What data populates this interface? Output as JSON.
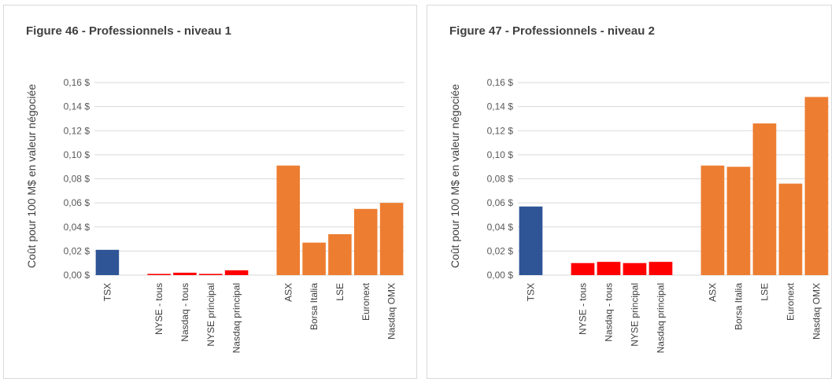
{
  "chart_data": [
    {
      "type": "bar",
      "title": "Figure 46 - Professionnels - niveau 1",
      "ylabel": "Coût pour 100 M$ en valeur négociée",
      "xlabel": "",
      "ylim": [
        0,
        0.16
      ],
      "yticks": [
        "0,00 $",
        "0,02 $",
        "0,04 $",
        "0,06 $",
        "0,08 $",
        "0,10 $",
        "0,12 $",
        "0,14 $",
        "0,16 $"
      ],
      "grid": true,
      "categories": [
        "TSX",
        "NYSE - tous",
        "Nasdaq - tous",
        "NYSE principal",
        "Nasdaq principal",
        "ASX",
        "Borsa Italia",
        "LSE",
        "Euronext",
        "Nasdaq OMX"
      ],
      "values": [
        0.021,
        0.001,
        0.002,
        0.001,
        0.004,
        0.091,
        0.027,
        0.034,
        0.055,
        0.06
      ],
      "groups": [
        1,
        4,
        5
      ],
      "colors": {
        "tsx": "#2f5597",
        "us": "#ff0000",
        "intl": "#ed7d31"
      }
    },
    {
      "type": "bar",
      "title": "Figure 47 - Professionnels - niveau 2",
      "ylabel": "Coût pour 100 M$ en valeur négociée",
      "xlabel": "",
      "ylim": [
        0,
        0.16
      ],
      "yticks": [
        "0,00 $",
        "0,02 $",
        "0,04 $",
        "0,06 $",
        "0,08 $",
        "0,10 $",
        "0,12 $",
        "0,14 $",
        "0,16 $"
      ],
      "grid": true,
      "categories": [
        "TSX",
        "NYSE - tous",
        "Nasdaq - tous",
        "NYSE principal",
        "Nasdaq principal",
        "ASX",
        "Borsa Italia",
        "LSE",
        "Euronext",
        "Nasdaq OMX"
      ],
      "values": [
        0.057,
        0.01,
        0.011,
        0.01,
        0.011,
        0.091,
        0.09,
        0.126,
        0.076,
        0.148
      ],
      "groups": [
        1,
        4,
        5
      ],
      "colors": {
        "tsx": "#2f5597",
        "us": "#ff0000",
        "intl": "#ed7d31"
      }
    }
  ]
}
